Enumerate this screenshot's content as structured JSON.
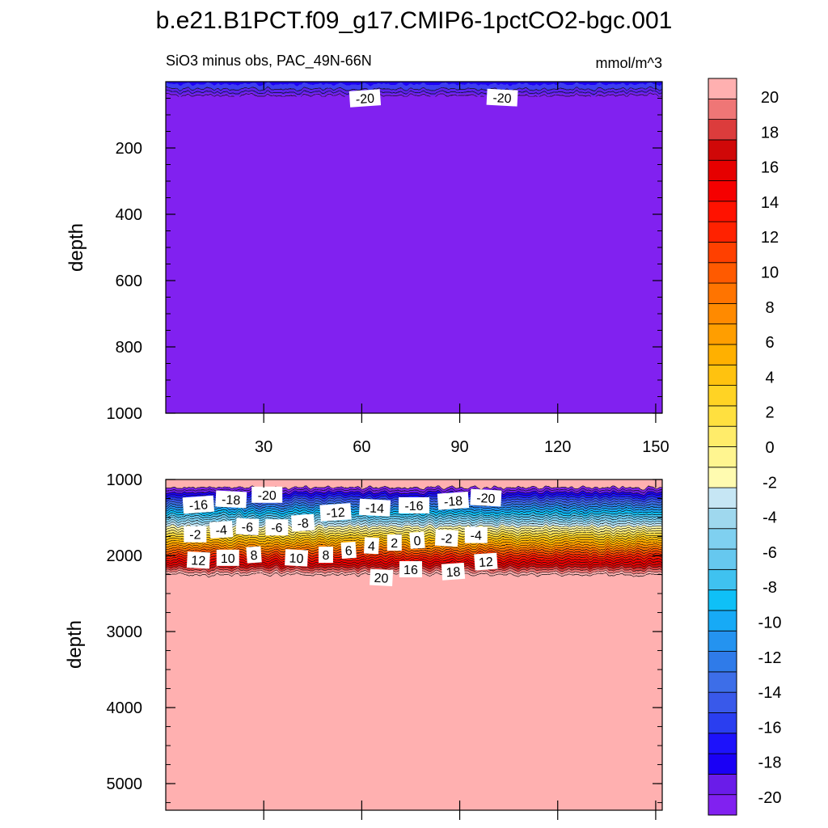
{
  "chart_data": {
    "type": "heatmap",
    "title": "b.e21.B1PCT.f09_g17.CMIP6-1pctCO2-bgc.001",
    "subtitle": "SiO3 minus obs, PAC_49N-66N",
    "units": "mmol/m^3",
    "x_range": [
      0,
      152
    ],
    "x_ticks": [
      30,
      60,
      90,
      120,
      150
    ],
    "x_tick_labels": [
      "30",
      "60",
      "90",
      "120",
      "150"
    ],
    "upper_panel": {
      "ylabel": "depth",
      "ylim": [
        0,
        1000
      ],
      "y_ticks": [
        200,
        400,
        600,
        800,
        1000
      ],
      "y_tick_labels": [
        "200",
        "400",
        "600",
        "800",
        "1000"
      ],
      "fill_value": -21,
      "contour_labels": [
        {
          "text": "-20",
          "x": 61,
          "depth": 50
        },
        {
          "text": "-20",
          "x": 103,
          "depth": 48
        }
      ]
    },
    "lower_panel": {
      "ylabel": "depth",
      "ylim": [
        1000,
        5350
      ],
      "y_ticks": [
        1000,
        2000,
        3000,
        4000,
        5000
      ],
      "y_tick_labels": [
        "1000",
        "2000",
        "3000",
        "4000",
        "5000"
      ],
      "gradient_depths": [
        1000,
        2250
      ],
      "deep_value": 21,
      "contour_labels": [
        {
          "text": "-16",
          "x": 10,
          "depth": 1330
        },
        {
          "text": "-18",
          "x": 20,
          "depth": 1260
        },
        {
          "text": "-20",
          "x": 31,
          "depth": 1200
        },
        {
          "text": "-12",
          "x": 52,
          "depth": 1430
        },
        {
          "text": "-14",
          "x": 64,
          "depth": 1370
        },
        {
          "text": "-16",
          "x": 76,
          "depth": 1340
        },
        {
          "text": "-18",
          "x": 88,
          "depth": 1280
        },
        {
          "text": "-20",
          "x": 98,
          "depth": 1240
        },
        {
          "text": "-2",
          "x": 9,
          "depth": 1720
        },
        {
          "text": "-4",
          "x": 17,
          "depth": 1660
        },
        {
          "text": "-6",
          "x": 25,
          "depth": 1620
        },
        {
          "text": "-6",
          "x": 34,
          "depth": 1630
        },
        {
          "text": "-8",
          "x": 42,
          "depth": 1570
        },
        {
          "text": "12",
          "x": 10,
          "depth": 2060
        },
        {
          "text": "10",
          "x": 19,
          "depth": 2030
        },
        {
          "text": "8",
          "x": 27,
          "depth": 1990
        },
        {
          "text": "10",
          "x": 40,
          "depth": 2030
        },
        {
          "text": "8",
          "x": 49,
          "depth": 1990
        },
        {
          "text": "6",
          "x": 56,
          "depth": 1930
        },
        {
          "text": "4",
          "x": 63,
          "depth": 1870
        },
        {
          "text": "2",
          "x": 70,
          "depth": 1830
        },
        {
          "text": "0",
          "x": 77,
          "depth": 1800
        },
        {
          "text": "-2",
          "x": 86,
          "depth": 1770
        },
        {
          "text": "-4",
          "x": 95,
          "depth": 1730
        },
        {
          "text": "12",
          "x": 98,
          "depth": 2080
        },
        {
          "text": "20",
          "x": 66,
          "depth": 2290
        },
        {
          "text": "16",
          "x": 75,
          "depth": 2180
        },
        {
          "text": "18",
          "x": 88,
          "depth": 2210
        }
      ]
    },
    "colorbar": {
      "levels": [
        -20,
        -18,
        -16,
        -14,
        -12,
        -10,
        -8,
        -6,
        -4,
        -2,
        0,
        2,
        4,
        6,
        8,
        10,
        12,
        14,
        16,
        18,
        20
      ],
      "tick_labels": [
        "-20",
        "-18",
        "-16",
        "-14",
        "-12",
        "-10",
        "-8",
        "-6",
        "-4",
        "-2",
        "0",
        "2",
        "4",
        "6",
        "8",
        "10",
        "12",
        "14",
        "16",
        "18",
        "20"
      ],
      "colors": [
        "#8121f0",
        "#6a1ce9",
        "#1a00f5",
        "#1d12fb",
        "#2a3ef0",
        "#3959ea",
        "#3d6ee8",
        "#2f7be9",
        "#2493f0",
        "#17aaf6",
        "#0fc0f7",
        "#3fc2f0",
        "#66c8ef",
        "#7fd0f0",
        "#9fd8ee",
        "#c6e6f4",
        "#fffbb0",
        "#fff590",
        "#ffec6a",
        "#ffe03f",
        "#ffd324",
        "#ffc20f",
        "#ffb000",
        "#ff9e00",
        "#ff8a00",
        "#ff7400",
        "#ff5a00",
        "#ff4000",
        "#ff2200",
        "#ff1200",
        "#f50000",
        "#e60000",
        "#d00808",
        "#dc3c3c",
        "#ef7676",
        "#ffb0b0"
      ]
    }
  }
}
